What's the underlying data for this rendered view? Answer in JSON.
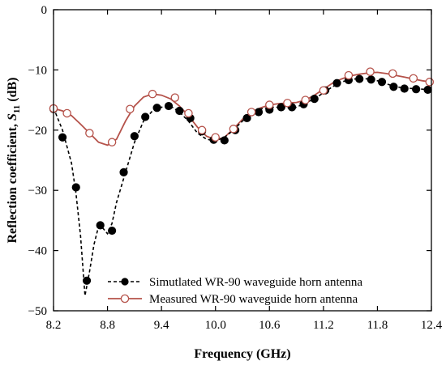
{
  "chart_data": {
    "type": "line",
    "xlabel": "Frequency (GHz)",
    "ylabel": {
      "main": "Reflection coefficient, ",
      "symbol": "S",
      "subscript": "11",
      "unit": " (dB)"
    },
    "xlim": [
      8.2,
      12.4
    ],
    "ylim": [
      -50,
      0
    ],
    "xticks": [
      8.2,
      8.8,
      9.4,
      10.0,
      10.6,
      11.2,
      11.8,
      12.4
    ],
    "xtick_labels": [
      "8.2",
      "8.8",
      "9.4",
      "10.0",
      "10.6",
      "11.2",
      "11.8",
      "12.4"
    ],
    "yticks": [
      0,
      -10,
      -20,
      -30,
      -40,
      -50
    ],
    "ytick_labels": [
      "0",
      "−10",
      "−20",
      "−30",
      "−40",
      "−50"
    ],
    "grid": false,
    "legend_position": "bottom-right",
    "series": [
      {
        "name": "Simutlated WR-90 waveguide horn antenna",
        "style": "dashed line with filled circle markers",
        "color": "#000000",
        "curve": [
          [
            8.2,
            -16.3
          ],
          [
            8.3,
            -20.0
          ],
          [
            8.4,
            -25.5
          ],
          [
            8.45,
            -30.5
          ],
          [
            8.5,
            -37.5
          ],
          [
            8.55,
            -47.5
          ],
          [
            8.6,
            -43.5
          ],
          [
            8.65,
            -39.0
          ],
          [
            8.7,
            -36.0
          ],
          [
            8.75,
            -36.3
          ],
          [
            8.8,
            -37.2
          ],
          [
            8.85,
            -35.5
          ],
          [
            8.9,
            -32.0
          ],
          [
            9.0,
            -27.0
          ],
          [
            9.1,
            -22.0
          ],
          [
            9.2,
            -18.5
          ],
          [
            9.3,
            -16.8
          ],
          [
            9.4,
            -16.2
          ],
          [
            9.5,
            -16.0
          ],
          [
            9.6,
            -17.0
          ],
          [
            9.7,
            -18.5
          ],
          [
            9.8,
            -20.5
          ],
          [
            9.9,
            -21.5
          ],
          [
            10.0,
            -21.8
          ],
          [
            10.1,
            -21.2
          ],
          [
            10.2,
            -20.0
          ],
          [
            10.3,
            -18.5
          ],
          [
            10.4,
            -17.2
          ],
          [
            10.5,
            -16.5
          ],
          [
            10.6,
            -16.2
          ],
          [
            10.7,
            -16.2
          ],
          [
            10.8,
            -16.3
          ],
          [
            10.9,
            -16.2
          ],
          [
            11.0,
            -15.5
          ],
          [
            11.1,
            -14.8
          ],
          [
            11.2,
            -13.8
          ],
          [
            11.3,
            -12.8
          ],
          [
            11.4,
            -12.0
          ],
          [
            11.5,
            -11.6
          ],
          [
            11.6,
            -11.4
          ],
          [
            11.7,
            -11.5
          ],
          [
            11.8,
            -11.8
          ],
          [
            11.9,
            -12.3
          ],
          [
            12.0,
            -12.8
          ],
          [
            12.1,
            -13.0
          ],
          [
            12.2,
            -13.1
          ],
          [
            12.3,
            -13.2
          ],
          [
            12.4,
            -13.3
          ]
        ],
        "markers": [
          [
            8.2,
            -16.5
          ],
          [
            8.3,
            -21.2
          ],
          [
            8.45,
            -29.5
          ],
          [
            8.57,
            -45.0
          ],
          [
            8.72,
            -35.8
          ],
          [
            8.85,
            -36.7
          ],
          [
            8.98,
            -27.0
          ],
          [
            9.1,
            -21.0
          ],
          [
            9.22,
            -17.8
          ],
          [
            9.35,
            -16.3
          ],
          [
            9.48,
            -16.0
          ],
          [
            9.6,
            -16.8
          ],
          [
            9.72,
            -18.0
          ],
          [
            9.85,
            -20.2
          ],
          [
            9.98,
            -21.6
          ],
          [
            10.1,
            -21.7
          ],
          [
            10.22,
            -20.0
          ],
          [
            10.35,
            -18.0
          ],
          [
            10.48,
            -17.0
          ],
          [
            10.6,
            -16.6
          ],
          [
            10.73,
            -16.2
          ],
          [
            10.85,
            -16.2
          ],
          [
            10.98,
            -15.7
          ],
          [
            11.1,
            -14.8
          ],
          [
            11.22,
            -13.4
          ],
          [
            11.35,
            -12.2
          ],
          [
            11.48,
            -11.7
          ],
          [
            11.6,
            -11.5
          ],
          [
            11.73,
            -11.6
          ],
          [
            11.85,
            -12.0
          ],
          [
            11.98,
            -12.8
          ],
          [
            12.1,
            -13.1
          ],
          [
            12.23,
            -13.2
          ],
          [
            12.36,
            -13.3
          ]
        ]
      },
      {
        "name": "Measured WR-90 waveguide horn antenna",
        "style": "solid line with hollow circle markers",
        "color": "#b5524a",
        "curve": [
          [
            8.2,
            -16.4
          ],
          [
            8.3,
            -16.8
          ],
          [
            8.4,
            -17.6
          ],
          [
            8.5,
            -19.0
          ],
          [
            8.6,
            -20.5
          ],
          [
            8.7,
            -22.0
          ],
          [
            8.8,
            -22.5
          ],
          [
            8.9,
            -21.5
          ],
          [
            9.0,
            -18.5
          ],
          [
            9.1,
            -16.0
          ],
          [
            9.2,
            -14.5
          ],
          [
            9.3,
            -14.0
          ],
          [
            9.4,
            -14.2
          ],
          [
            9.5,
            -14.8
          ],
          [
            9.6,
            -16.0
          ],
          [
            9.7,
            -17.6
          ],
          [
            9.8,
            -19.5
          ],
          [
            9.9,
            -21.0
          ],
          [
            10.0,
            -21.6
          ],
          [
            10.1,
            -21.2
          ],
          [
            10.2,
            -19.8
          ],
          [
            10.3,
            -18.2
          ],
          [
            10.4,
            -17.0
          ],
          [
            10.5,
            -16.3
          ],
          [
            10.6,
            -15.8
          ],
          [
            10.7,
            -15.6
          ],
          [
            10.8,
            -15.5
          ],
          [
            10.9,
            -15.4
          ],
          [
            11.0,
            -15.0
          ],
          [
            11.1,
            -14.2
          ],
          [
            11.2,
            -13.2
          ],
          [
            11.3,
            -12.2
          ],
          [
            11.4,
            -11.5
          ],
          [
            11.5,
            -11.0
          ],
          [
            11.6,
            -10.7
          ],
          [
            11.7,
            -10.5
          ],
          [
            11.8,
            -10.4
          ],
          [
            11.9,
            -10.6
          ],
          [
            12.0,
            -10.9
          ],
          [
            12.1,
            -11.2
          ],
          [
            12.2,
            -11.5
          ],
          [
            12.3,
            -11.8
          ],
          [
            12.4,
            -12.0
          ]
        ],
        "markers": [
          [
            8.2,
            -16.4
          ],
          [
            8.35,
            -17.2
          ],
          [
            8.6,
            -20.5
          ],
          [
            8.85,
            -22.0
          ],
          [
            9.05,
            -16.5
          ],
          [
            9.3,
            -14.0
          ],
          [
            9.55,
            -14.6
          ],
          [
            9.7,
            -17.2
          ],
          [
            9.85,
            -20.0
          ],
          [
            10.0,
            -21.2
          ],
          [
            10.2,
            -19.8
          ],
          [
            10.4,
            -17.0
          ],
          [
            10.6,
            -15.8
          ],
          [
            10.8,
            -15.5
          ],
          [
            11.0,
            -15.0
          ],
          [
            11.2,
            -13.4
          ],
          [
            11.48,
            -10.9
          ],
          [
            11.72,
            -10.3
          ],
          [
            11.97,
            -10.6
          ],
          [
            12.2,
            -11.4
          ],
          [
            12.38,
            -12.0
          ]
        ]
      }
    ]
  }
}
